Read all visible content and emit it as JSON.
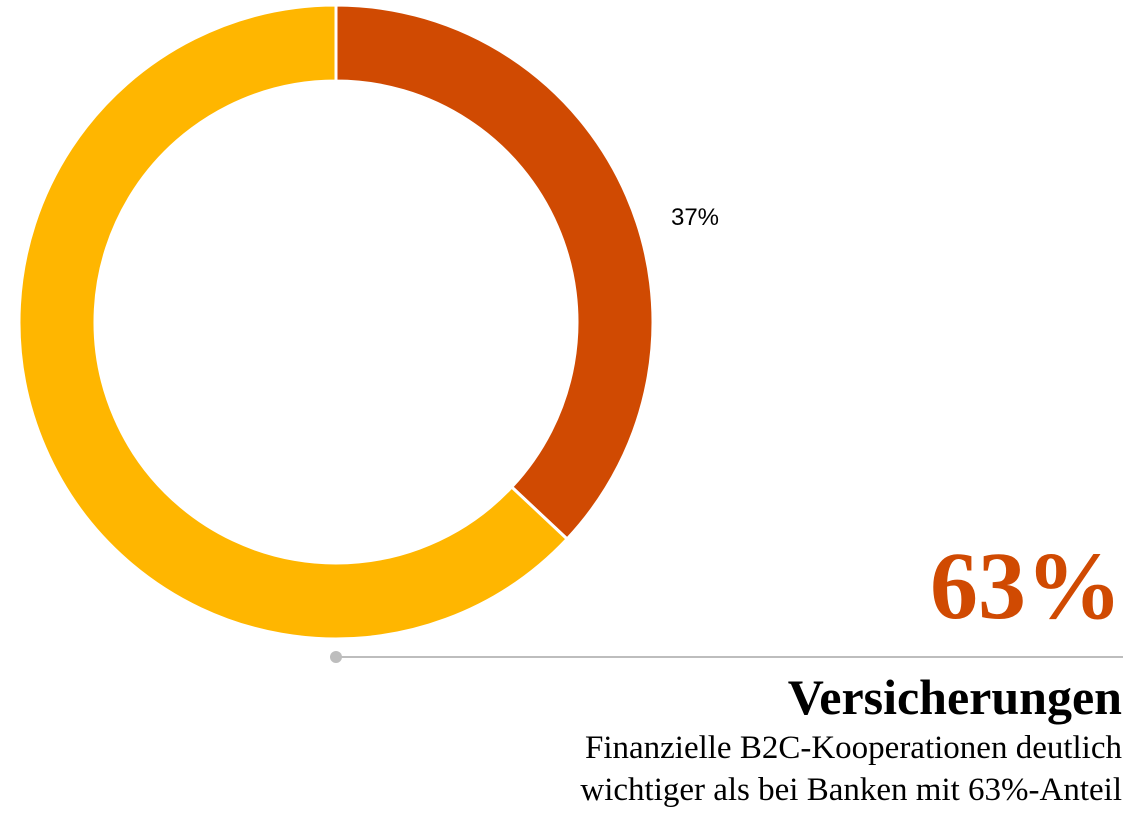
{
  "chart_data": {
    "type": "donut",
    "categories": [
      null,
      "Versicherungen"
    ],
    "values": [
      37,
      63
    ],
    "value_labels": [
      "37%",
      "63%"
    ],
    "colors": [
      "#d04a02",
      "#ffb600"
    ],
    "description": [
      "Finanzielle B2C-Kooperationen deutlich",
      "wichtiger als bei Banken mit 63%-Anteil"
    ]
  }
}
